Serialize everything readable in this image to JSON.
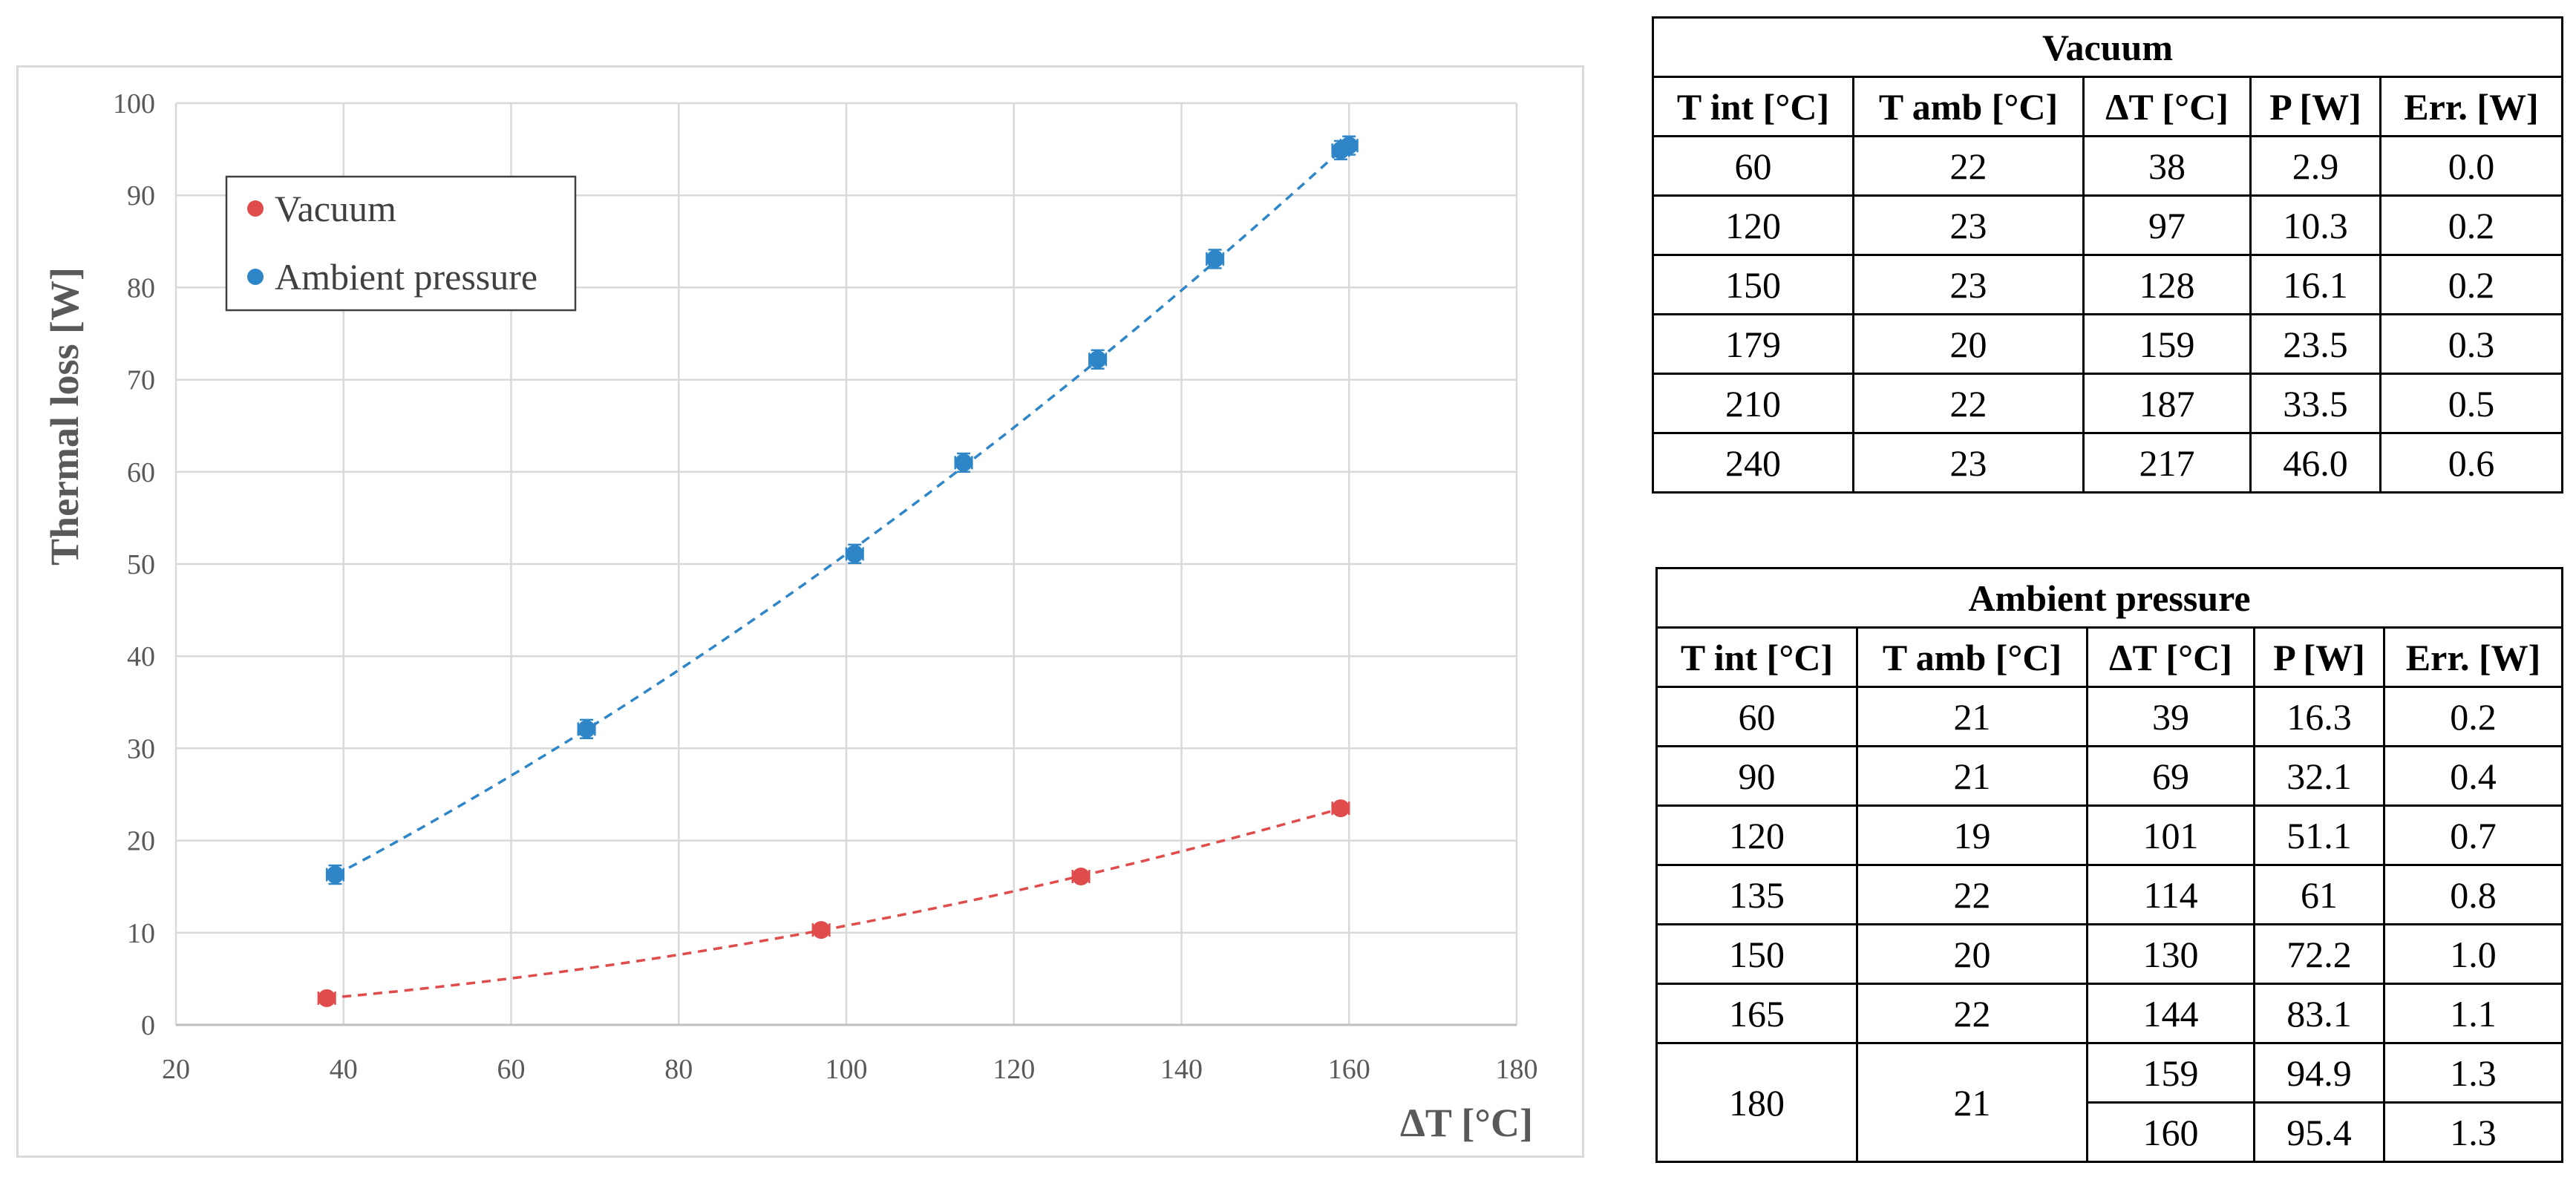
{
  "chart_data": {
    "type": "scatter",
    "title": "",
    "xlabel": "ΔT [°C]",
    "ylabel": "Thermal loss [W]",
    "xlim": [
      20,
      180
    ],
    "ylim": [
      0,
      100
    ],
    "x_ticks": [
      20,
      40,
      60,
      80,
      100,
      120,
      140,
      160,
      180
    ],
    "y_ticks": [
      0,
      10,
      20,
      30,
      40,
      50,
      60,
      70,
      80,
      90,
      100
    ],
    "grid": true,
    "legend_position": "top-left",
    "series": [
      {
        "name": "Vacuum",
        "color": "#e04b4b",
        "x": [
          38,
          97,
          128,
          159
        ],
        "y": [
          2.9,
          10.3,
          16.1,
          23.5
        ],
        "x_err": 1,
        "trendline": "dashed"
      },
      {
        "name": "Ambient pressure",
        "color": "#2e86c8",
        "x": [
          39,
          69,
          101,
          114,
          130,
          144,
          159,
          160
        ],
        "y": [
          16.3,
          32.1,
          51.1,
          61,
          72.2,
          83.1,
          94.9,
          95.4
        ],
        "x_err": 1,
        "y_err": 1,
        "trendline": "dashed"
      }
    ]
  },
  "tables": {
    "vacuum": {
      "title": "Vacuum",
      "headers": [
        "T int [°C]",
        "T amb [°C]",
        "ΔT [°C]",
        "P [W]",
        "Err. [W]"
      ],
      "rows": [
        [
          "60",
          "22",
          "38",
          "2.9",
          "0.0"
        ],
        [
          "120",
          "23",
          "97",
          "10.3",
          "0.2"
        ],
        [
          "150",
          "23",
          "128",
          "16.1",
          "0.2"
        ],
        [
          "179",
          "20",
          "159",
          "23.5",
          "0.3"
        ],
        [
          "210",
          "22",
          "187",
          "33.5",
          "0.5"
        ],
        [
          "240",
          "23",
          "217",
          "46.0",
          "0.6"
        ]
      ]
    },
    "ambient": {
      "title": "Ambient pressure",
      "headers": [
        "T int [°C]",
        "T amb [°C]",
        "ΔT [°C]",
        "P [W]",
        "Err. [W]"
      ],
      "rows": [
        [
          "60",
          "21",
          "39",
          "16.3",
          "0.2"
        ],
        [
          "90",
          "21",
          "69",
          "32.1",
          "0.4"
        ],
        [
          "120",
          "19",
          "101",
          "51.1",
          "0.7"
        ],
        [
          "135",
          "22",
          "114",
          "61",
          "0.8"
        ],
        [
          "150",
          "20",
          "130",
          "72.2",
          "1.0"
        ],
        [
          "165",
          "22",
          "144",
          "83.1",
          "1.1"
        ]
      ],
      "merged_row": {
        "t_int": "180",
        "t_amb": "21",
        "sub_rows": [
          [
            "159",
            "94.9",
            "1.3"
          ],
          [
            "160",
            "95.4",
            "1.3"
          ]
        ]
      }
    }
  }
}
